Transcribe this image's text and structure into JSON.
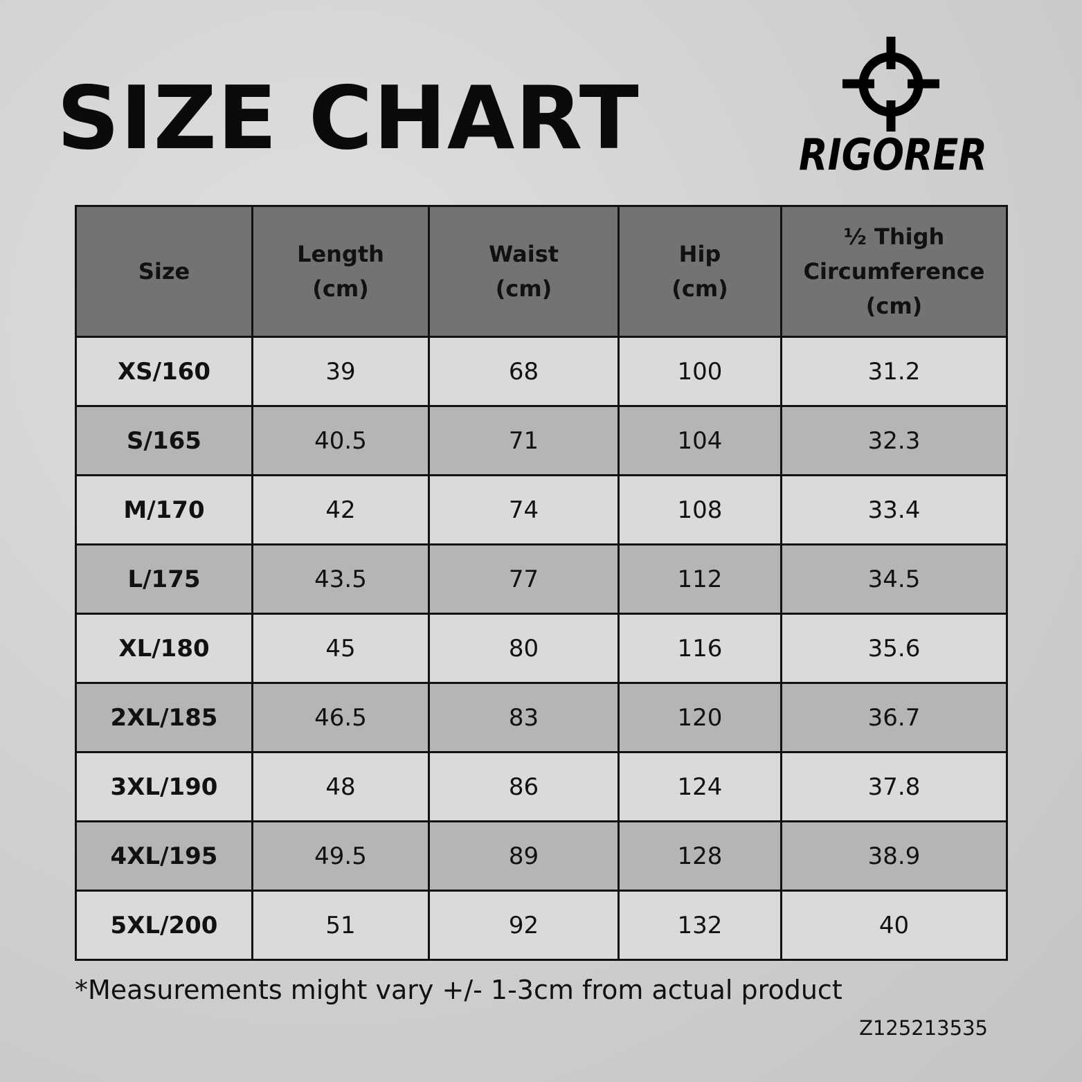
{
  "title": "SIZE CHART",
  "brand": {
    "name": "RIGORER",
    "icon": "crosshair-icon"
  },
  "table": {
    "headers": [
      [
        "Size"
      ],
      [
        "Length",
        "(cm)"
      ],
      [
        "Waist",
        "(cm)"
      ],
      [
        "Hip",
        "(cm)"
      ],
      [
        "½ Thigh",
        "Circumference",
        "(cm)"
      ]
    ],
    "rows": [
      [
        "XS/160",
        "39",
        "68",
        "100",
        "31.2"
      ],
      [
        "S/165",
        "40.5",
        "71",
        "104",
        "32.3"
      ],
      [
        "M/170",
        "42",
        "74",
        "108",
        "33.4"
      ],
      [
        "L/175",
        "43.5",
        "77",
        "112",
        "34.5"
      ],
      [
        "XL/180",
        "45",
        "80",
        "116",
        "35.6"
      ],
      [
        "2XL/185",
        "46.5",
        "83",
        "120",
        "36.7"
      ],
      [
        "3XL/190",
        "48",
        "86",
        "124",
        "37.8"
      ],
      [
        "4XL/195",
        "49.5",
        "89",
        "128",
        "38.9"
      ],
      [
        "5XL/200",
        "51",
        "92",
        "132",
        "40"
      ]
    ]
  },
  "note": "*Measurements might vary +/- 1-3cm from actual product",
  "code": "Z125213535",
  "colors": {
    "header": "#737373",
    "row_light": "#dadada",
    "row_dark": "#b5b5b5"
  }
}
